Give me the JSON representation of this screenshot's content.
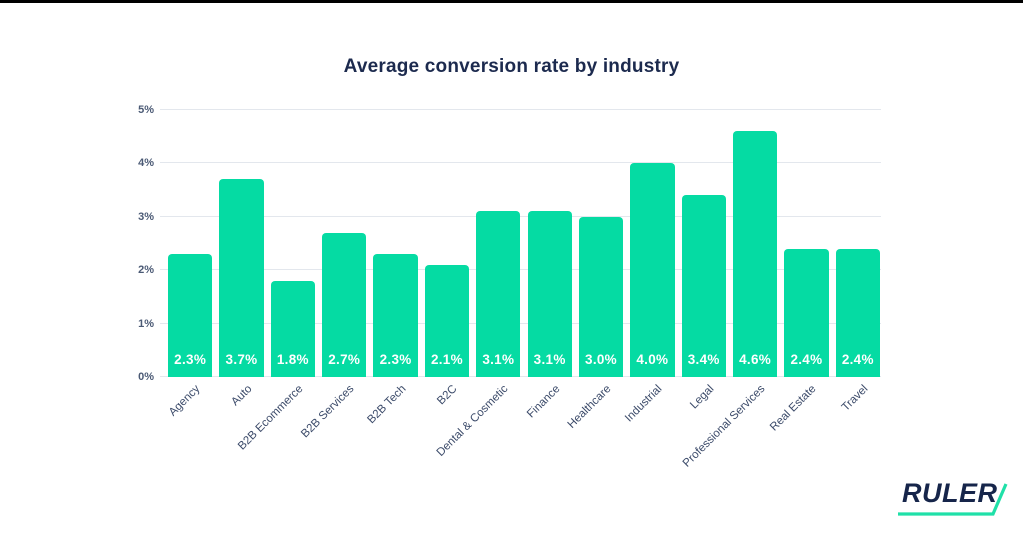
{
  "page": {
    "background_color": "#ffffff",
    "top_strip_color": "#000000"
  },
  "chart_data": {
    "type": "bar",
    "title": "Average conversion rate by industry",
    "categories": [
      "Agency",
      "Auto",
      "B2B Ecommerce",
      "B2B Services",
      "B2B Tech",
      "B2C",
      "Dental & Cosmetic",
      "Finance",
      "Healthcare",
      "Industrial",
      "Legal",
      "Professional Services",
      "Real Estate",
      "Travel"
    ],
    "values": [
      2.3,
      3.7,
      1.8,
      2.7,
      2.3,
      2.1,
      3.1,
      3.1,
      3.0,
      4.0,
      3.4,
      4.6,
      2.4,
      2.4
    ],
    "value_labels": [
      "2.3%",
      "3.7%",
      "1.8%",
      "2.7%",
      "2.3%",
      "2.1%",
      "3.1%",
      "3.1%",
      "3.0%",
      "4.0%",
      "3.4%",
      "4.6%",
      "2.4%",
      "2.4%"
    ],
    "y_tick_labels": [
      "0%",
      "1%",
      "2%",
      "3%",
      "4%",
      "5%"
    ],
    "ylim": [
      0,
      5
    ],
    "xlabel": "",
    "ylabel": "",
    "grid": true,
    "legend_position": "none",
    "bar_color": "#05dba3",
    "value_label_color": "#ffffff",
    "gridline_color": "#e3e7ed",
    "title_color": "#1c2a4e",
    "axis_label_color": "#3c4b6a"
  },
  "logo": {
    "text": "RULER",
    "text_color": "#16254a",
    "accent_color": "#1fe0a8"
  }
}
